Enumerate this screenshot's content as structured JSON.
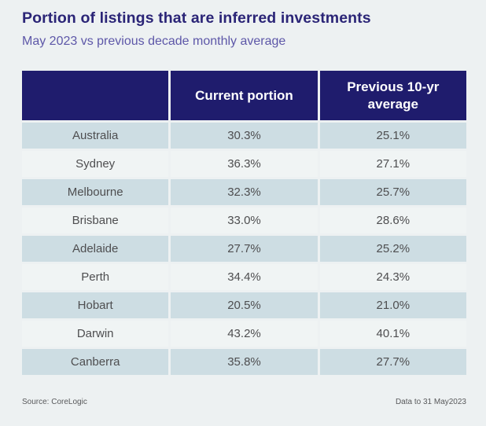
{
  "page": {
    "title": "Portion of listings that are inferred investments",
    "subtitle": "May 2023 vs previous decade monthly average",
    "source": "Source: CoreLogic",
    "data_note": "Data to 31 May2023"
  },
  "colors": {
    "background": "#edf1f2",
    "header_bg": "#1f1c6d",
    "header_text": "#ffffff",
    "row_alt": "#cddde3",
    "row_base": "#f0f4f4",
    "title": "#2b2577",
    "subtitle": "#5d57a8",
    "cell_text": "#4e4e50"
  },
  "table": {
    "columns": [
      "",
      "Current portion",
      "Previous 10-yr average"
    ],
    "rows": [
      {
        "city": "Australia",
        "current": "30.3%",
        "previous": "25.1%"
      },
      {
        "city": "Sydney",
        "current": "36.3%",
        "previous": "27.1%"
      },
      {
        "city": "Melbourne",
        "current": "32.3%",
        "previous": "25.7%"
      },
      {
        "city": "Brisbane",
        "current": "33.0%",
        "previous": "28.6%"
      },
      {
        "city": "Adelaide",
        "current": "27.7%",
        "previous": "25.2%"
      },
      {
        "city": "Perth",
        "current": "34.4%",
        "previous": "24.3%"
      },
      {
        "city": "Hobart",
        "current": "20.5%",
        "previous": "21.0%"
      },
      {
        "city": "Darwin",
        "current": "43.2%",
        "previous": "40.1%"
      },
      {
        "city": "Canberra",
        "current": "35.8%",
        "previous": "27.7%"
      }
    ]
  },
  "chart_data": {
    "type": "table",
    "title": "Portion of listings that are inferred investments",
    "subtitle": "May 2023 vs previous decade monthly average",
    "categories": [
      "Australia",
      "Sydney",
      "Melbourne",
      "Brisbane",
      "Adelaide",
      "Perth",
      "Hobart",
      "Darwin",
      "Canberra"
    ],
    "series": [
      {
        "name": "Current portion",
        "values": [
          30.3,
          36.3,
          32.3,
          33.0,
          27.7,
          34.4,
          20.5,
          43.2,
          35.8
        ]
      },
      {
        "name": "Previous 10-yr average",
        "values": [
          25.1,
          27.1,
          25.7,
          28.6,
          25.2,
          24.3,
          21.0,
          40.1,
          27.7
        ]
      }
    ],
    "unit": "%",
    "source": "CoreLogic",
    "data_note": "Data to 31 May2023"
  }
}
